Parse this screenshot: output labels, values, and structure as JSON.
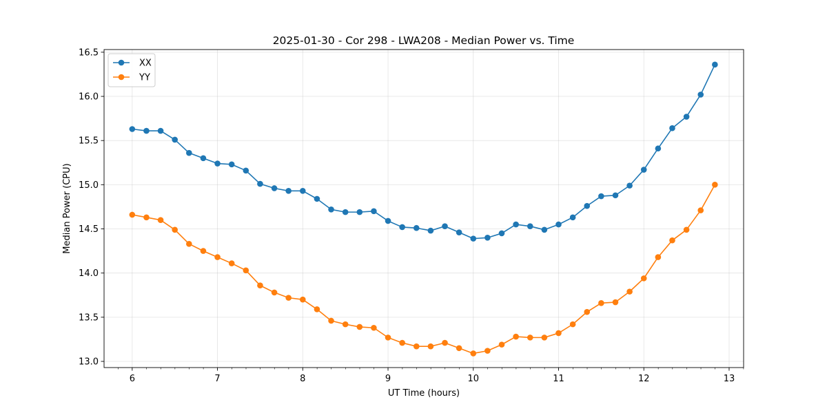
{
  "chart_data": {
    "type": "line",
    "title": "2025-01-30 - Cor 298 - LWA208 - Median Power vs. Time",
    "xlabel": "UT Time (hours)",
    "ylabel": "Median Power (CPU)",
    "xlim": [
      5.67,
      13.17
    ],
    "ylim": [
      12.93,
      16.53
    ],
    "xticks": [
      6,
      7,
      8,
      9,
      10,
      11,
      12,
      13
    ],
    "yticks": [
      13.0,
      13.5,
      14.0,
      14.5,
      15.0,
      15.5,
      16.0,
      16.5
    ],
    "xtick_labels": [
      "6",
      "7",
      "8",
      "9",
      "10",
      "11",
      "12",
      "13"
    ],
    "ytick_labels": [
      "13.0",
      "13.5",
      "14.0",
      "14.5",
      "15.0",
      "15.5",
      "16.0",
      "16.5"
    ],
    "x_minor_step": 0.1667,
    "grid": true,
    "legend_position": "top-left",
    "x": [
      6.0,
      6.1667,
      6.3333,
      6.5,
      6.6667,
      6.8333,
      7.0,
      7.1667,
      7.3333,
      7.5,
      7.6667,
      7.8333,
      8.0,
      8.1667,
      8.3333,
      8.5,
      8.6667,
      8.8333,
      9.0,
      9.1667,
      9.3333,
      9.5,
      9.6667,
      9.8333,
      10.0,
      10.1667,
      10.3333,
      10.5,
      10.6667,
      10.8333,
      11.0,
      11.1667,
      11.3333,
      11.5,
      11.6667,
      11.8333,
      12.0,
      12.1667,
      12.3333,
      12.5,
      12.6667,
      12.8333
    ],
    "series": [
      {
        "name": "XX",
        "color": "#1f77b4",
        "values": [
          15.63,
          15.61,
          15.61,
          15.51,
          15.36,
          15.3,
          15.24,
          15.23,
          15.16,
          15.01,
          14.96,
          14.93,
          14.93,
          14.84,
          14.72,
          14.69,
          14.69,
          14.7,
          14.59,
          14.52,
          14.51,
          14.48,
          14.53,
          14.46,
          14.39,
          14.4,
          14.45,
          14.55,
          14.53,
          14.49,
          14.55,
          14.63,
          14.76,
          14.87,
          14.88,
          14.99,
          15.17,
          15.41,
          15.64,
          15.77,
          16.02,
          16.36
        ]
      },
      {
        "name": "YY",
        "color": "#ff7f0e",
        "values": [
          14.66,
          14.63,
          14.6,
          14.49,
          14.33,
          14.25,
          14.18,
          14.11,
          14.03,
          13.86,
          13.78,
          13.72,
          13.7,
          13.59,
          13.46,
          13.42,
          13.39,
          13.38,
          13.27,
          13.21,
          13.17,
          13.17,
          13.21,
          13.15,
          13.09,
          13.12,
          13.19,
          13.28,
          13.27,
          13.27,
          13.32,
          13.42,
          13.56,
          13.66,
          13.67,
          13.79,
          13.94,
          14.18,
          14.37,
          14.49,
          14.71,
          15.0
        ]
      }
    ]
  }
}
